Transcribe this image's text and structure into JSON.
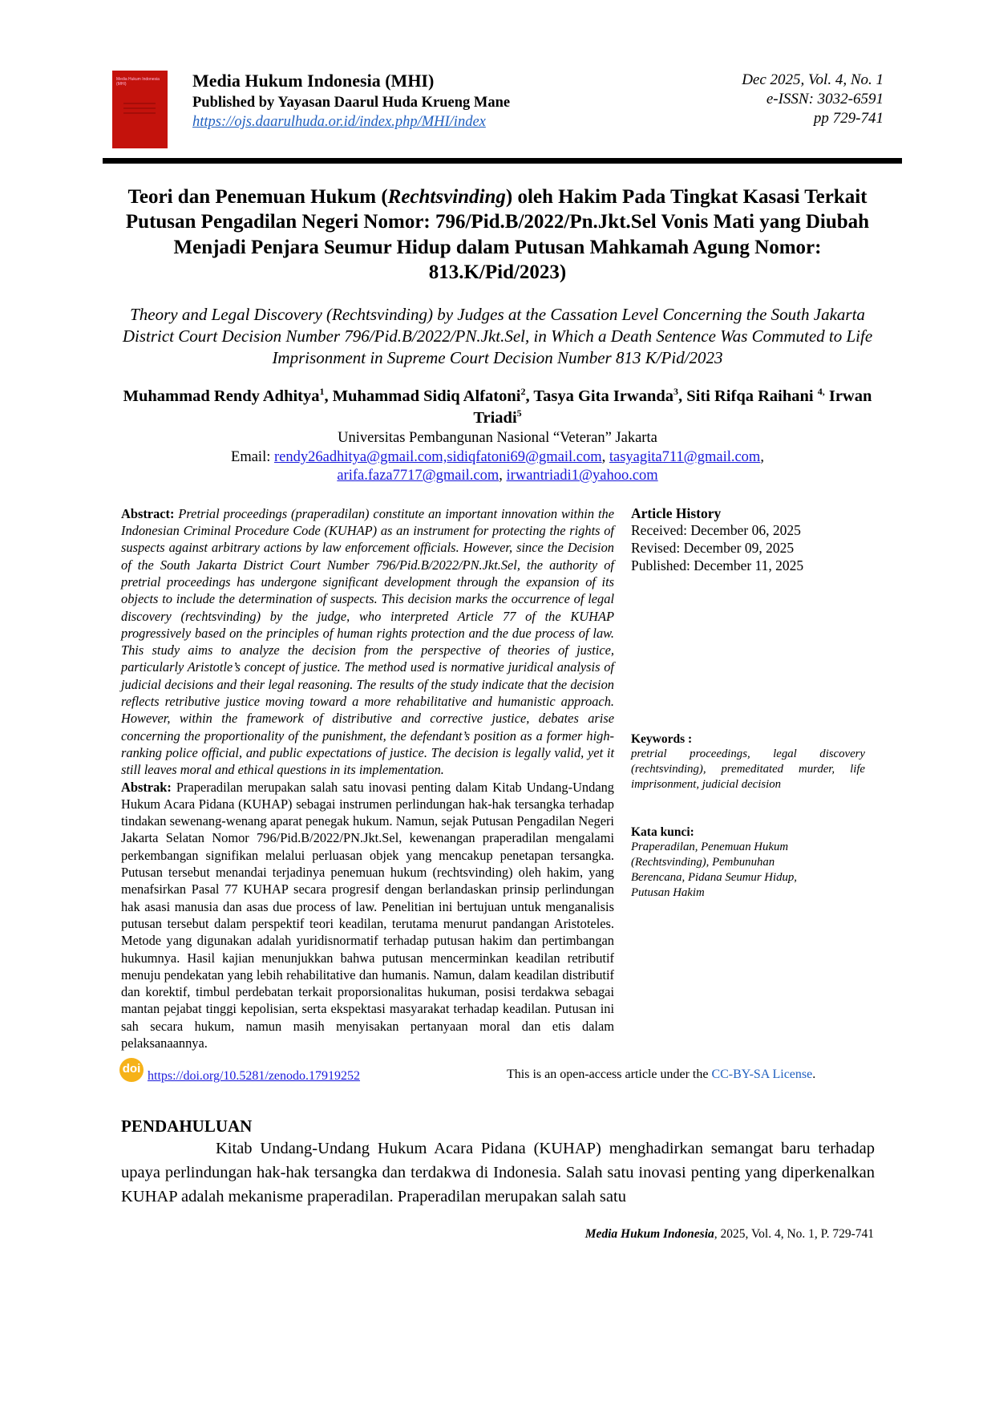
{
  "header": {
    "cover_title": "Media Hukum Indonesia (MHI)",
    "journal_title": "Media Hukum Indonesia (MHI)",
    "publisher": "Published by Yayasan Daarul Huda Krueng Mane",
    "url": "https://ojs.daarulhuda.or.id/index.php/MHI/index",
    "issue": "Dec 2025, Vol. 4, No. 1",
    "issn": "e-ISSN: 3032-6591",
    "pages": "pp 729-741"
  },
  "title_id": {
    "pre": "Teori dan Penemuan Hukum (",
    "italic": "Rechtsvinding",
    "post": ") oleh Hakim Pada Tingkat Kasasi Terkait Putusan Pengadilan Negeri Nomor: 796/Pid.B/2022/Pn.Jkt.Sel Vonis Mati yang Diubah Menjadi Penjara Seumur Hidup dalam Putusan Mahkamah Agung Nomor: 813.K/Pid/2023)"
  },
  "title_en": "Theory and Legal Discovery (Rechtsvinding) by Judges at the Cassation Level Concerning the South Jakarta District Court Decision Number 796/Pid.B/2022/PN.Jkt.Sel, in Which a Death Sentence Was Commuted to Life Imprisonment in Supreme Court Decision Number 813 K/Pid/2023",
  "authors": [
    {
      "name": "Muhammad Rendy Adhitya",
      "sup": "1",
      "sep": ", "
    },
    {
      "name": "Muhammad Sidiq Alfatoni",
      "sup": "2",
      "sep": ", "
    },
    {
      "name": "Tasya Gita Irwanda",
      "sup": "3",
      "sep": ", "
    },
    {
      "name": "Siti Rifqa Raihani ",
      "sup": "4,",
      "sep": " "
    },
    {
      "name": "Irwan Triadi",
      "sup": "5",
      "sep": ""
    }
  ],
  "affiliation": "Universitas Pembangunan Nasional “Veteran” Jakarta",
  "email_label": "Email: ",
  "emails": [
    "rendy26adhitya@gmail.com,sidiqfatoni69@gmail.com",
    "tasyagita711@gmail.com",
    "arifa.faza7717@gmail.com",
    "irwantriadi1@yahoo.com"
  ],
  "abstract": {
    "label": "Abstract:",
    "text": "Pretrial proceedings (praperadilan) constitute an important innovation within the Indonesian Criminal Procedure Code (KUHAP) as an instrument for protecting the rights of suspects against arbitrary actions by law enforcement officials. However, since the Decision of the South Jakarta District Court Number 796/Pid.B/2022/PN.Jkt.Sel, the authority of pretrial proceedings has undergone significant development through the expansion of its objects to include the determination of suspects. This decision marks the occurrence of legal discovery (rechtsvinding) by the judge, who interpreted Article 77 of the KUHAP progressively based on the principles of human rights protection and the due process of law. This study aims to analyze the decision from the perspective of theories of justice, particularly Aristotle’s concept of justice. The method used is normative juridical analysis of judicial decisions and their legal reasoning. The results of the study indicate that the decision reflects retributive justice moving toward a more rehabilitative and humanistic approach. However, within the framework of distributive and corrective justice, debates arise concerning the proportionality of the punishment, the defendant’s position as a former high-ranking police official, and public expectations of justice. The decision is legally valid, yet it still leaves moral and ethical questions in its implementation."
  },
  "abstrak": {
    "label": "Abstrak:",
    "text": "Praperadilan merupakan salah satu inovasi penting dalam Kitab Undang-Undang Hukum Acara Pidana (KUHAP) sebagai instrumen perlindungan hak-hak tersangka terhadap tindakan sewenang-wenang aparat penegak hukum. Namun, sejak Putusan Pengadilan Negeri Jakarta Selatan Nomor 796/Pid.B/2022/PN.Jkt.Sel, kewenangan praperadilan mengalami perkembangan signifikan melalui perluasan objek yang mencakup penetapan tersangka. Putusan tersebut menandai terjadinya penemuan hukum (rechtsvinding) oleh hakim, yang menafsirkan Pasal 77 KUHAP secara progresif dengan berlandaskan prinsip perlindungan hak asasi manusia dan asas due process of law. Penelitian ini bertujuan untuk menganalisis putusan tersebut dalam perspektif teori keadilan, terutama menurut pandangan Aristoteles. Metode yang digunakan adalah yuridisnormatif terhadap putusan hakim dan pertimbangan hukumnya. Hasil kajian menunjukkan bahwa putusan mencerminkan keadilan retributif menuju pendekatan yang lebih rehabilitative dan humanis. Namun, dalam keadilan distributif dan korektif, timbul perdebatan terkait proporsionalitas hukuman, posisi terdakwa sebagai mantan pejabat tinggi kepolisian, serta ekspektasi masyarakat terhadap keadilan. Putusan ini sah secara hukum, namun masih menyisakan pertanyaan moral dan etis dalam pelaksanaannya."
  },
  "history": {
    "heading": "Article History",
    "received": "Received: December 06, 2025",
    "revised": "Revised: December 09, 2025",
    "published": "Published: December 11, 2025"
  },
  "keywords": {
    "heading": "Keywords :",
    "text": "pretrial proceedings, legal discovery (rechtsvinding), premeditated murder, life imprisonment, judicial decision"
  },
  "kata_kunci": {
    "heading": "Kata kunci:",
    "text": "Praperadilan, Penemuan Hukum (Rechtsvinding), Pembunuhan Berencana, Pidana Seumur Hidup, Putusan Hakim"
  },
  "doi": {
    "icon": "doi",
    "url": "https://doi.org/10.5281/zenodo.17919252"
  },
  "license": {
    "pre": "This is an open-access article under the ",
    "link": "CC-BY-SA License",
    "post": "."
  },
  "section": {
    "heading": "PENDAHULUAN",
    "text": "Kitab Undang-Undang Hukum Acara Pidana (KUHAP) menghadirkan semangat baru terhadap upaya perlindungan hak-hak tersangka dan terdakwa di Indonesia. Salah satu inovasi penting yang diperkenalkan KUHAP adalah mekanisme praperadilan. Praperadilan merupakan salah satu"
  },
  "footer": {
    "journal": "Media Hukum Indonesia",
    "rest": ", 2025, Vol.  4, No. 1, P. 729-741"
  },
  "colors": {
    "cover": "#c4120c",
    "link": "#1a1adb",
    "doi": "#f6b218"
  }
}
